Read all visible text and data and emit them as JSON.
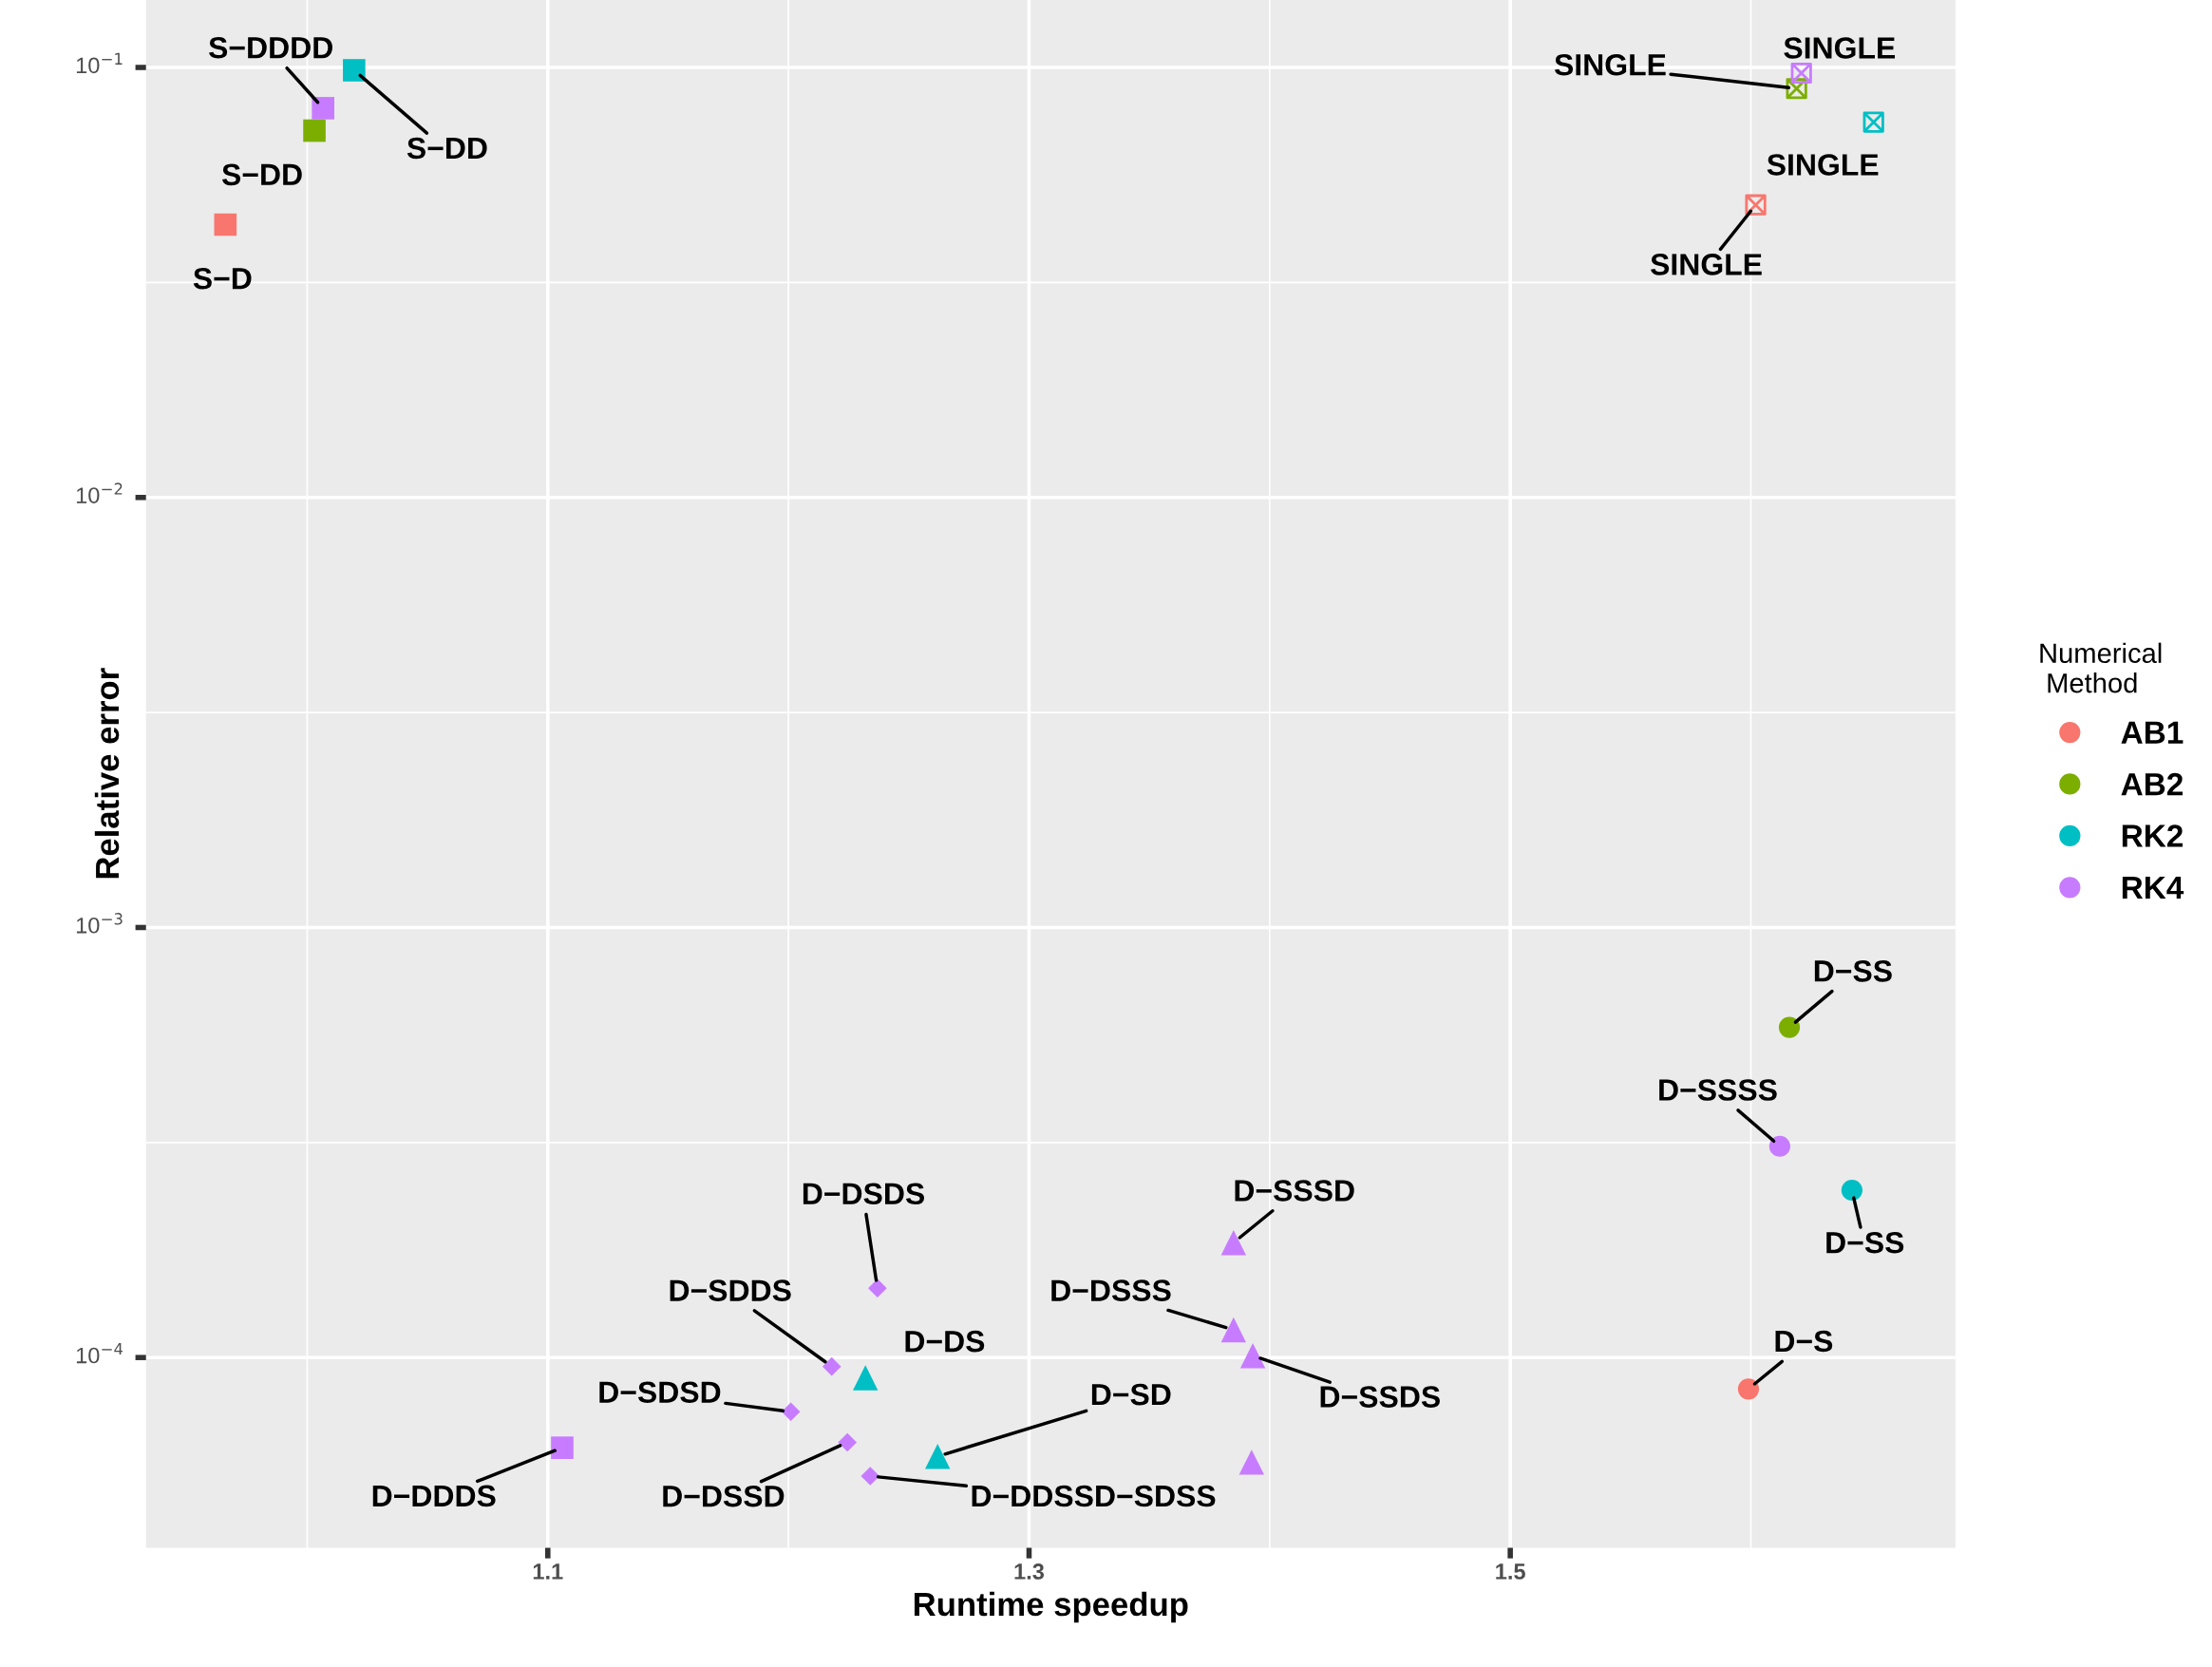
{
  "chart_data": {
    "type": "scatter",
    "xlabel": "Runtime speedup",
    "ylabel": "Relative error",
    "legend_title": "Numerical\n Method",
    "log": "y",
    "grid": true,
    "legend": "right",
    "xlim": [
      0.933,
      1.685
    ],
    "ylim": [
      3.61e-05,
      0.1435
    ],
    "xticks": [
      1.1,
      1.3,
      1.5
    ],
    "yticks": [
      {
        "value": 0.0001,
        "label": "10$^{−4}$"
      },
      {
        "value": 0.001,
        "label": "10$^{−3}$"
      },
      {
        "value": 0.01,
        "label": "10$^{−2}$"
      },
      {
        "value": 0.1,
        "label": "10$^{−1}$"
      }
    ],
    "series": [
      {
        "name": "AB1",
        "color": "#F8766D",
        "marker": "circle",
        "x": [
          1.599
        ],
        "values": [
          8.45e-05
        ]
      },
      {
        "color": "#F8766D",
        "marker": "square",
        "x": [
          0.966
        ],
        "values": [
          0.0431
        ]
      },
      {
        "color": "#F8766D",
        "marker": "cross",
        "x": [
          1.602
        ],
        "values": [
          0.0479
        ]
      },
      {
        "name": "AB2",
        "color": "#7CAE00",
        "marker": "circle",
        "x": [
          1.616
        ],
        "values": [
          0.000586
        ]
      },
      {
        "color": "#7CAE00",
        "marker": "square",
        "x": [
          1.003
        ],
        "values": [
          0.0713
        ]
      },
      {
        "color": "#7CAE00",
        "marker": "cross",
        "x": [
          1.619
        ],
        "values": [
          0.0893
        ]
      },
      {
        "name": "RK2",
        "color": "#00BFC4",
        "marker": "circle",
        "x": [
          1.642
        ],
        "values": [
          0.000245
        ]
      },
      {
        "color": "#00BFC4",
        "marker": "square",
        "x": [
          1.0195
        ],
        "values": [
          0.0985
        ]
      },
      {
        "color": "#00BFC4",
        "marker": "cross",
        "x": [
          1.651
        ],
        "values": [
          0.0746
        ]
      },
      {
        "color": "#00BFC4",
        "marker": "triangle",
        "x": [
          1.232,
          1.262
        ],
        "values": [
          8.97e-05,
          5.89e-05
        ]
      },
      {
        "name": "RK4",
        "color": "#C77CFF",
        "marker": "circle",
        "x": [
          1.612
        ],
        "values": [
          0.00031
        ]
      },
      {
        "color": "#C77CFF",
        "marker": "square",
        "x": [
          1.0066,
          1.106
        ],
        "values": [
          0.0804,
          6.17e-05
        ]
      },
      {
        "color": "#C77CFF",
        "marker": "cross",
        "x": [
          1.621
        ],
        "values": [
          0.097
        ]
      },
      {
        "color": "#C77CFF",
        "marker": "diamond",
        "x": [
          1.237,
          1.218,
          1.201,
          1.2245,
          1.234
        ],
        "values": [
          0.000145,
          9.53e-05,
          7.48e-05,
          6.35e-05,
          5.3e-05
        ]
      },
      {
        "color": "#C77CFF",
        "marker": "triangle",
        "x": [
          1.385,
          1.385,
          1.393,
          1.3925
        ],
        "values": [
          0.000185,
          0.000116,
          0.000101,
          5.71e-05
        ]
      }
    ],
    "annotations": [
      {
        "text": "S−D",
        "x": 0.966,
        "y": 0.0431
      },
      {
        "text": "S−DD",
        "x": 1.003,
        "y": 0.0713
      },
      {
        "text": "S−DD",
        "x": 1.0195,
        "y": 0.0985
      },
      {
        "text": "S−DDDD",
        "x": 1.0066,
        "y": 0.0804
      },
      {
        "text": "SINGLE",
        "x": 1.602,
        "y": 0.0479
      },
      {
        "text": "SINGLE",
        "x": 1.619,
        "y": 0.0893
      },
      {
        "text": "SINGLE",
        "x": 1.651,
        "y": 0.0746
      },
      {
        "text": "SINGLE",
        "x": 1.621,
        "y": 0.097
      },
      {
        "text": "D−S",
        "x": 1.599,
        "y": 8.45e-05
      },
      {
        "text": "D−SS",
        "x": 1.616,
        "y": 0.000586
      },
      {
        "text": "D−SS",
        "x": 1.642,
        "y": 0.000245
      },
      {
        "text": "D−DS",
        "x": 1.232,
        "y": 8.97e-05
      },
      {
        "text": "D−SD",
        "x": 1.262,
        "y": 5.89e-05
      },
      {
        "text": "D−SSSS",
        "x": 1.612,
        "y": 0.00031
      },
      {
        "text": "D−DDDS",
        "x": 1.106,
        "y": 6.17e-05
      },
      {
        "text": "D−DSDS",
        "x": 1.237,
        "y": 0.000145
      },
      {
        "text": "D−SDDS",
        "x": 1.218,
        "y": 9.53e-05
      },
      {
        "text": "D−SDSD",
        "x": 1.201,
        "y": 7.48e-05
      },
      {
        "text": "D−DSSD",
        "x": 1.2245,
        "y": 6.35e-05
      },
      {
        "text": "D−DDSSD−SDSS",
        "x": 1.234,
        "y": 5.3e-05
      },
      {
        "text": "D−SSSD",
        "x": 1.385,
        "y": 0.000185
      },
      {
        "text": "D−DSSS",
        "x": 1.385,
        "y": 0.000116
      },
      {
        "text": "D−SSDS",
        "x": 1.393,
        "y": 0.000101
      }
    ]
  }
}
